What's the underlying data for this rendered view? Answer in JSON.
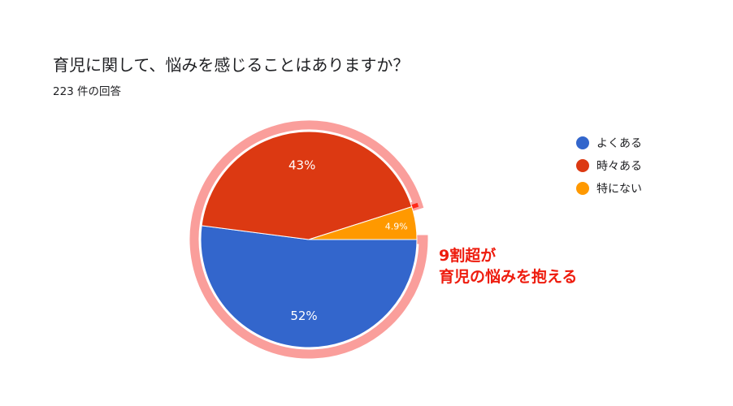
{
  "chart_data": {
    "type": "pie",
    "title": "育児に関して、悩みを感じることはありますか？",
    "subtitle": "223 件の回答",
    "slices": [
      {
        "label": "よくある",
        "value": 52,
        "display": "52%",
        "color": "#3366cc"
      },
      {
        "label": "時々ある",
        "value": 43,
        "display": "43%",
        "color": "#dc3912"
      },
      {
        "label": "特にない",
        "value": 4.9,
        "display": "4.9%",
        "color": "#ff9900"
      }
    ],
    "legend_position": "right",
    "annotation": {
      "lines": [
        "9割超が",
        "育児の悩みを抱える"
      ],
      "color": "#ee1c0e",
      "highlight_color": "#fa9e9b"
    }
  }
}
